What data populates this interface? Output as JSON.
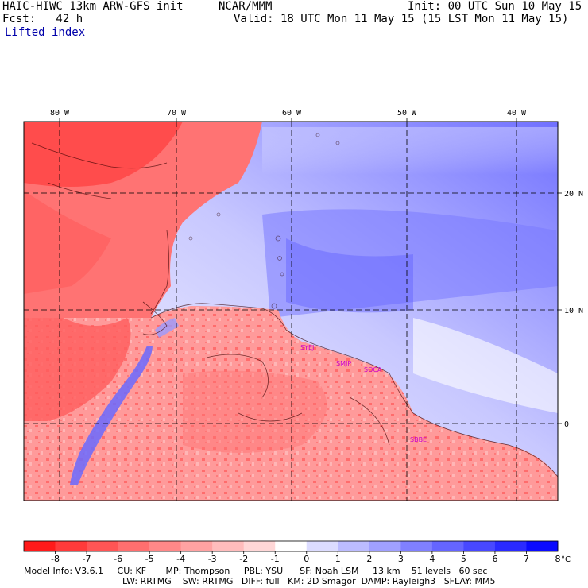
{
  "header": {
    "model": "HAIC-HIWC 13km ARW-GFS init",
    "org": "NCAR/MMM",
    "init": "Init: 00 UTC Sun 10 May 15",
    "fcst": "Fcst:   42 h",
    "valid": "Valid: 18 UTC Mon 11 May 15 (15 LST Mon 11 May 15)",
    "field": "Lifted index"
  },
  "axes": {
    "lon_labels": [
      "80 W",
      "70 W",
      "60 W",
      "50 W",
      "40 W"
    ],
    "lat_labels": [
      "20 N",
      "10 N",
      "0"
    ]
  },
  "stations": [
    "SYEJ",
    "SMJP",
    "SOCA",
    "SBBE"
  ],
  "colorbar": {
    "ticks": [
      "-8",
      "-7",
      "-6",
      "-5",
      "-4",
      "-3",
      "-2",
      "-1",
      "0",
      "1",
      "2",
      "3",
      "4",
      "5",
      "6",
      "7",
      "8"
    ],
    "unit": "°C",
    "colors": [
      "#ff1a1a",
      "#ff3a3a",
      "#ff5555",
      "#ff6f6f",
      "#ff8888",
      "#ffa2a2",
      "#ffbcbc",
      "#ffd7d7",
      "#ffffff",
      "#dcdcff",
      "#bcbcff",
      "#a0a0ff",
      "#8080ff",
      "#6565ff",
      "#4848ff",
      "#2a2aff",
      "#0a0aff"
    ]
  },
  "footer": {
    "line1": "Model Info: V3.6.1     CU: KF       MP: Thompson     PBL: YSU      SF: Noah LSM     13 km    51 levels   60 sec",
    "line2": "LW: RRTMG    SW: RRTMG   DIFF: full   KM: 2D Smagor  DAMP: Rayleigh3   SFLAY: MM5"
  }
}
